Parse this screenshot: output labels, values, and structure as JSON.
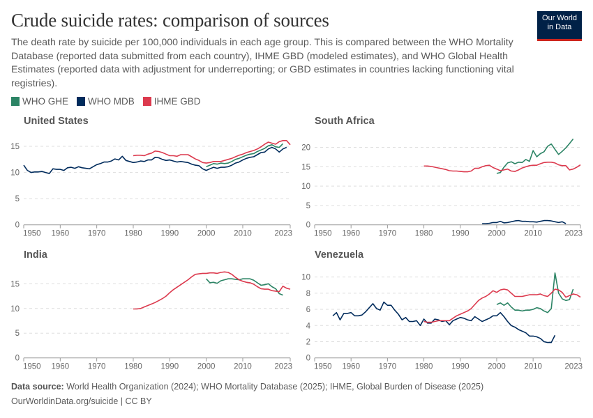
{
  "header": {
    "title": "Crude suicide rates: comparison of sources",
    "subtitle": "The death rate by suicide per 100,000 individuals in each age group. This is compared between the WHO Mortality Database (reported data submitted from each country), IHME GBD (modeled estimates), and WHO Global Health Estimates (reported data with adjustment for underreporting; or GBD estimates in countries lacking functioning vital registries).",
    "logo_line1": "Our World",
    "logo_line2": "in Data"
  },
  "legend": [
    {
      "label": "WHO GHE",
      "color": "#2c8465"
    },
    {
      "label": "WHO MDB",
      "color": "#002b5c"
    },
    {
      "label": "IHME GBD",
      "color": "#dc3a4e"
    }
  ],
  "footer": {
    "source_label": "Data source:",
    "source_text": "World Health Organization (2024); WHO Mortality Database (2025); IHME, Global Burden of Disease (2025)",
    "url_line": "OurWorldinData.org/suicide | CC BY"
  },
  "chart_data": [
    {
      "type": "line",
      "title": "United States",
      "xlim": [
        1950,
        2023
      ],
      "xticks": [
        "1950",
        "1960",
        "1970",
        "1980",
        "1990",
        "2000",
        "2010",
        "2023"
      ],
      "ylim": [
        0,
        17
      ],
      "yticks": [
        0,
        5,
        10,
        15
      ],
      "grid": true,
      "series": [
        {
          "name": "WHO GHE",
          "start": 2000,
          "values": [
            11.1,
            11.4,
            11.7,
            11.6,
            11.8,
            11.7,
            11.8,
            12.1,
            12.5,
            12.7,
            13.0,
            13.3,
            13.5,
            13.6,
            14.0,
            14.3,
            14.6,
            15.1,
            15.3,
            14.9,
            14.8,
            15.5
          ]
        },
        {
          "name": "WHO MDB",
          "start": 1950,
          "values": [
            11.4,
            10.4,
            10.0,
            10.1,
            10.1,
            10.2,
            10.0,
            9.8,
            10.7,
            10.6,
            10.6,
            10.4,
            10.9,
            11.0,
            10.8,
            11.1,
            10.9,
            10.8,
            10.7,
            11.1,
            11.5,
            11.7,
            12.0,
            12.0,
            12.2,
            12.6,
            12.4,
            13.1,
            12.3,
            12.1,
            11.9,
            12.0,
            12.2,
            12.1,
            12.4,
            12.4,
            12.9,
            12.8,
            12.5,
            12.3,
            12.4,
            12.2,
            12.0,
            12.1,
            12.0,
            11.9,
            11.6,
            11.4,
            11.3,
            10.7,
            10.4,
            10.7,
            11.0,
            10.8,
            11.0,
            11.0,
            11.1,
            11.4,
            11.8,
            12.0,
            12.4,
            12.7,
            12.9,
            13.0,
            13.4,
            13.8,
            13.9,
            14.5,
            14.8,
            14.5,
            13.9,
            14.5,
            14.8
          ]
        },
        {
          "name": "IHME GBD",
          "start": 1980,
          "values": [
            13.2,
            13.3,
            13.3,
            13.2,
            13.5,
            13.7,
            14.1,
            14.0,
            13.8,
            13.5,
            13.2,
            13.2,
            13.1,
            13.4,
            13.4,
            13.4,
            13.0,
            12.6,
            12.3,
            11.9,
            11.8,
            11.9,
            12.1,
            12.1,
            12.1,
            12.3,
            12.5,
            12.7,
            13.0,
            13.3,
            13.5,
            13.8,
            14.0,
            14.2,
            14.5,
            14.9,
            15.4,
            15.8,
            15.6,
            15.4,
            15.9,
            16.1,
            16.1,
            15.3
          ]
        }
      ]
    },
    {
      "type": "line",
      "title": "South Africa",
      "xlim": [
        1950,
        2023
      ],
      "xticks": [
        "1950",
        "1960",
        "1970",
        "1980",
        "1990",
        "2000",
        "2010",
        "2023"
      ],
      "ylim": [
        0,
        23
      ],
      "yticks": [
        0,
        5,
        10,
        15,
        20
      ],
      "grid": true,
      "series": [
        {
          "name": "WHO GHE",
          "start": 2000,
          "values": [
            13.3,
            13.5,
            14.9,
            16.0,
            16.3,
            15.8,
            16.2,
            16.1,
            16.9,
            16.4,
            19.2,
            17.6,
            18.4,
            18.9,
            20.3,
            20.9,
            19.5,
            18.2,
            19.0,
            19.9,
            21.0,
            22.2
          ]
        },
        {
          "name": "WHO MDB",
          "start": 1996,
          "values": [
            0.3,
            0.3,
            0.4,
            0.6,
            0.6,
            0.9,
            0.5,
            0.6,
            0.8,
            1.0,
            1.1,
            0.9,
            0.9,
            0.8,
            0.8,
            0.7,
            0.9,
            1.1,
            1.1,
            1.0,
            0.8,
            0.6,
            0.8,
            0.3
          ]
        },
        {
          "name": "IHME GBD",
          "start": 1980,
          "values": [
            15.2,
            15.2,
            15.1,
            14.9,
            14.7,
            14.5,
            14.3,
            14.0,
            13.9,
            13.9,
            13.8,
            13.7,
            13.7,
            13.9,
            14.6,
            14.6,
            15.0,
            15.3,
            15.4,
            14.8,
            14.4,
            14.0,
            14.2,
            14.4,
            13.9,
            13.8,
            14.2,
            14.7,
            15.0,
            15.3,
            15.4,
            15.4,
            15.8,
            16.1,
            16.2,
            16.2,
            16.0,
            15.5,
            15.3,
            15.3,
            14.2,
            14.4,
            14.9,
            15.5
          ]
        }
      ]
    },
    {
      "type": "line",
      "title": "India",
      "xlim": [
        1950,
        2023
      ],
      "xticks": [
        "1950",
        "1960",
        "1970",
        "1980",
        "1990",
        "2000",
        "2010",
        "2023"
      ],
      "ylim": [
        0,
        18
      ],
      "yticks": [
        0,
        5,
        10,
        15
      ],
      "grid": true,
      "series": [
        {
          "name": "WHO GHE",
          "start": 2000,
          "values": [
            16.0,
            15.2,
            15.3,
            15.1,
            15.6,
            15.8,
            16.0,
            16.0,
            15.9,
            15.8,
            16.0,
            16.0,
            16.0,
            15.7,
            15.2,
            14.7,
            14.8,
            15.0,
            14.4,
            14.0,
            13.0,
            12.7
          ]
        },
        {
          "name": "IHME GBD",
          "start": 1980,
          "values": [
            9.9,
            9.9,
            10.0,
            10.3,
            10.6,
            10.9,
            11.2,
            11.6,
            12.0,
            12.5,
            13.2,
            13.8,
            14.3,
            14.8,
            15.3,
            15.8,
            16.4,
            16.9,
            17.0,
            17.1,
            17.1,
            17.2,
            17.2,
            17.1,
            17.3,
            17.4,
            17.3,
            16.9,
            16.3,
            15.8,
            15.5,
            15.3,
            15.2,
            14.9,
            14.4,
            14.0,
            13.9,
            13.9,
            13.6,
            13.5,
            13.4,
            14.5,
            14.1,
            13.9
          ]
        }
      ]
    },
    {
      "type": "line",
      "title": "Venezuela",
      "xlim": [
        1950,
        2023
      ],
      "xticks": [
        "1950",
        "1960",
        "1970",
        "1980",
        "1990",
        "2000",
        "2010",
        "2023"
      ],
      "ylim": [
        0,
        11
      ],
      "yticks": [
        0,
        2,
        4,
        6,
        8,
        10
      ],
      "grid": true,
      "series": [
        {
          "name": "WHO GHE",
          "start": 2000,
          "values": [
            6.6,
            6.8,
            6.5,
            6.8,
            6.3,
            5.9,
            5.9,
            5.8,
            5.9,
            5.9,
            6.0,
            6.2,
            6.1,
            5.8,
            5.6,
            6.1,
            10.5,
            8.0,
            7.3,
            7.1,
            7.2,
            8.5
          ]
        },
        {
          "name": "WHO MDB",
          "start": 1955,
          "values": [
            5.2,
            5.6,
            4.7,
            5.5,
            5.5,
            5.6,
            5.2,
            5.2,
            5.3,
            5.7,
            6.2,
            6.7,
            6.1,
            5.9,
            6.9,
            6.5,
            6.5,
            5.9,
            5.4,
            4.7,
            5.0,
            4.5,
            4.5,
            4.6,
            4.0,
            4.8,
            4.3,
            4.3,
            4.8,
            4.7,
            4.5,
            4.6,
            4.1,
            4.6,
            4.8,
            5.0,
            4.9,
            4.7,
            4.6,
            5.1,
            4.8,
            4.5,
            4.7,
            4.9,
            5.2,
            5.2,
            5.6,
            5.1,
            4.5,
            4.0,
            3.8,
            3.5,
            3.3,
            3.1,
            2.7,
            2.7,
            2.6,
            2.4,
            2.0,
            1.9,
            1.9,
            2.8
          ]
        },
        {
          "name": "IHME GBD",
          "start": 1980,
          "values": [
            4.5,
            4.4,
            4.4,
            4.5,
            4.6,
            4.6,
            4.6,
            4.6,
            4.9,
            5.2,
            5.4,
            5.6,
            5.8,
            6.1,
            6.6,
            7.1,
            7.4,
            7.6,
            7.9,
            8.3,
            8.1,
            8.4,
            8.5,
            8.4,
            8.0,
            7.6,
            7.6,
            7.6,
            7.7,
            7.8,
            7.8,
            7.8,
            7.9,
            7.7,
            7.6,
            8.0,
            8.5,
            8.4,
            8.1,
            7.5,
            7.7,
            7.9,
            7.8,
            7.5
          ]
        }
      ]
    }
  ]
}
